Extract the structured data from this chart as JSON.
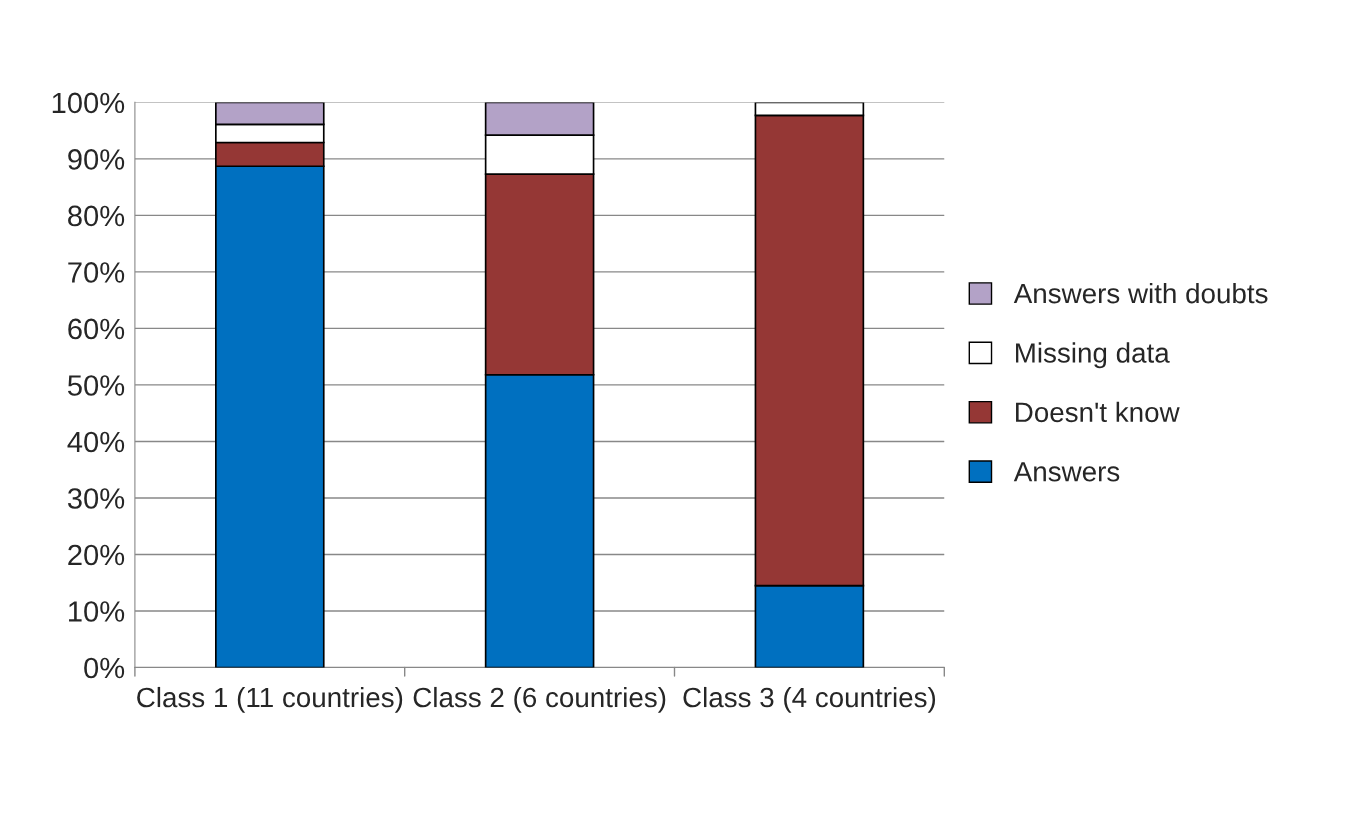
{
  "chart_data": {
    "type": "bar",
    "stacked": true,
    "categories": [
      "Class 1 (11 countries)",
      "Class 2 (6 countries)",
      "Class 3 (4 countries)"
    ],
    "series": [
      {
        "name": "Answers",
        "color": "#0070c0",
        "values": [
          88.7,
          51.8,
          14.5
        ]
      },
      {
        "name": "Doesn't know",
        "color": "#953735",
        "values": [
          4.2,
          35.5,
          83.2
        ]
      },
      {
        "name": "Missing data",
        "color": "#ffffff",
        "values": [
          3.2,
          6.9,
          2.3
        ]
      },
      {
        "name": "Answers with doubts",
        "color": "#b3a2c7",
        "values": [
          3.9,
          5.8,
          null
        ]
      }
    ],
    "ylim": [
      0,
      100
    ],
    "yticks": [
      {
        "value": 0,
        "label": "0%"
      },
      {
        "value": 10,
        "label": "10%"
      },
      {
        "value": 20,
        "label": "20%"
      },
      {
        "value": 30,
        "label": "30%"
      },
      {
        "value": 40,
        "label": "40%"
      },
      {
        "value": 50,
        "label": "50%"
      },
      {
        "value": 60,
        "label": "60%"
      },
      {
        "value": 70,
        "label": "70%"
      },
      {
        "value": 80,
        "label": "80%"
      },
      {
        "value": 90,
        "label": "90%"
      },
      {
        "value": 100,
        "label": "100%"
      }
    ],
    "grid": "y",
    "legend": "right"
  }
}
